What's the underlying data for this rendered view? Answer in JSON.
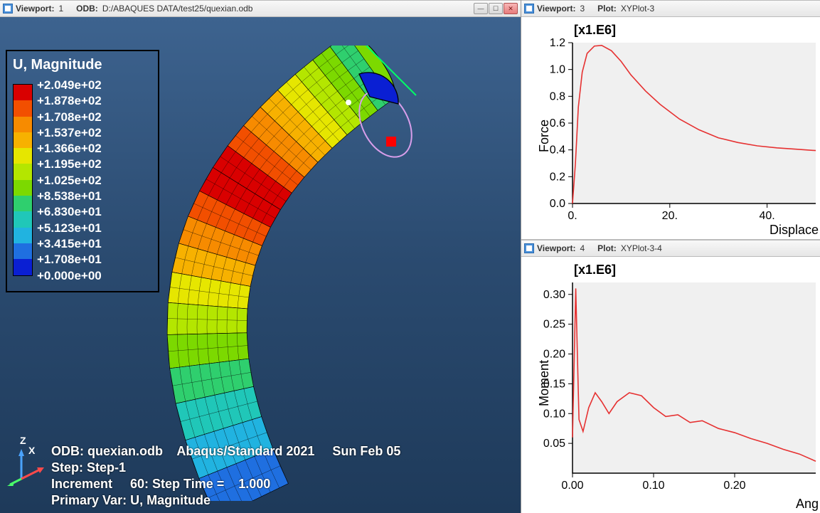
{
  "viewport1": {
    "titlebar": {
      "viewport_label": "Viewport:",
      "viewport_value": "1",
      "odb_label": "ODB:",
      "odb_path": "D:/ABAQUES DATA/test25/quexian.odb"
    },
    "legend": {
      "title": "U, Magnitude",
      "colors": [
        "#d90000",
        "#f24f00",
        "#f78b00",
        "#f7b100",
        "#e6e600",
        "#b4e600",
        "#7cd900",
        "#2fcf6e",
        "#20c7b8",
        "#21b3e0",
        "#1f6fe0",
        "#0a1fd3"
      ],
      "labels": [
        "+2.049e+02",
        "+1.878e+02",
        "+1.708e+02",
        "+1.537e+02",
        "+1.366e+02",
        "+1.195e+02",
        "+1.025e+02",
        "+8.538e+01",
        "+6.830e+01",
        "+5.123e+01",
        "+3.415e+01",
        "+1.708e+01",
        "+0.000e+00"
      ]
    },
    "footer": {
      "line1": "ODB: quexian.odb    Abaqus/Standard 2021     Sun Feb 05",
      "line2": "Step: Step-1",
      "line3": "Increment     60: Step Time =    1.000",
      "line4": "Primary Var: U, Magnitude"
    },
    "triad": {
      "z": "Z",
      "x": "X"
    },
    "background_gradient": [
      "#3d638f",
      "#1e3a5a"
    ],
    "pipe": {
      "mesh_stroke": "#000000",
      "band_colors": [
        "#2fcf6e",
        "#7cd900",
        "#b4e600",
        "#e6e600",
        "#f7b100",
        "#f78b00",
        "#f24f00",
        "#d90000",
        "#d90000",
        "#f24f00",
        "#f78b00",
        "#f7b100",
        "#e6e600",
        "#b4e600",
        "#7cd900",
        "#2fcf6e",
        "#20c7b8",
        "#21b3e0",
        "#1f6fe0"
      ],
      "rp_square_color": "#ff0000",
      "wedge_color": "#0a1fd3",
      "ring_color": "#d89eea"
    }
  },
  "viewport3": {
    "titlebar": {
      "viewport_label": "Viewport:",
      "viewport_value": "3",
      "plot_label": "Plot:",
      "plot_name": "XYPlot-3"
    },
    "chart": {
      "type": "line",
      "scale_label": "[x1.E6]",
      "ylabel": "Force",
      "xlabel": "Displace",
      "xlim": [
        0,
        50
      ],
      "ylim": [
        0,
        1.2
      ],
      "xticks": [
        0,
        20,
        40
      ],
      "xtick_labels": [
        "0.",
        "20.",
        "40."
      ],
      "yticks": [
        0.0,
        0.2,
        0.4,
        0.6,
        0.8,
        1.0,
        1.2
      ],
      "ytick_labels": [
        "0.0",
        "0.2",
        "0.4",
        "0.6",
        "0.8",
        "1.0",
        "1.2"
      ],
      "line_color": "#e63131",
      "line_width": 1.6,
      "plot_bg": "#f0f0f0",
      "axis_color": "#000000",
      "points": [
        [
          0,
          0
        ],
        [
          0.6,
          0.3
        ],
        [
          1.2,
          0.72
        ],
        [
          2.0,
          0.98
        ],
        [
          3.0,
          1.12
        ],
        [
          4.5,
          1.175
        ],
        [
          6.0,
          1.18
        ],
        [
          8.0,
          1.14
        ],
        [
          10.0,
          1.06
        ],
        [
          12.0,
          0.96
        ],
        [
          15.0,
          0.84
        ],
        [
          18.0,
          0.74
        ],
        [
          22.0,
          0.63
        ],
        [
          26.0,
          0.55
        ],
        [
          30.0,
          0.49
        ],
        [
          34.0,
          0.455
        ],
        [
          38.0,
          0.43
        ],
        [
          42.0,
          0.415
        ],
        [
          46.0,
          0.405
        ],
        [
          50.0,
          0.395
        ]
      ]
    }
  },
  "viewport4": {
    "titlebar": {
      "viewport_label": "Viewport:",
      "viewport_value": "4",
      "plot_label": "Plot:",
      "plot_name": "XYPlot-3-4"
    },
    "chart": {
      "type": "line",
      "scale_label": "[x1.E6]",
      "ylabel": "Moment",
      "xlabel": "Ang",
      "xlim": [
        0,
        0.3
      ],
      "ylim": [
        0,
        0.32
      ],
      "xticks": [
        0.0,
        0.1,
        0.2
      ],
      "xtick_labels": [
        "0.00",
        "0.10",
        "0.20"
      ],
      "yticks": [
        0.05,
        0.1,
        0.15,
        0.2,
        0.25,
        0.3
      ],
      "ytick_labels": [
        "0.05",
        "0.10",
        "0.15",
        "0.20",
        "0.25",
        "0.30"
      ],
      "line_color": "#e63131",
      "line_width": 1.6,
      "plot_bg": "#f0f0f0",
      "axis_color": "#000000",
      "points": [
        [
          0.0,
          0.06
        ],
        [
          0.004,
          0.31
        ],
        [
          0.008,
          0.09
        ],
        [
          0.013,
          0.07
        ],
        [
          0.02,
          0.11
        ],
        [
          0.028,
          0.135
        ],
        [
          0.036,
          0.12
        ],
        [
          0.045,
          0.1
        ],
        [
          0.055,
          0.12
        ],
        [
          0.07,
          0.135
        ],
        [
          0.085,
          0.13
        ],
        [
          0.1,
          0.11
        ],
        [
          0.115,
          0.095
        ],
        [
          0.13,
          0.098
        ],
        [
          0.145,
          0.085
        ],
        [
          0.16,
          0.088
        ],
        [
          0.18,
          0.075
        ],
        [
          0.2,
          0.068
        ],
        [
          0.22,
          0.058
        ],
        [
          0.24,
          0.05
        ],
        [
          0.26,
          0.04
        ],
        [
          0.28,
          0.032
        ],
        [
          0.3,
          0.02
        ]
      ]
    }
  }
}
